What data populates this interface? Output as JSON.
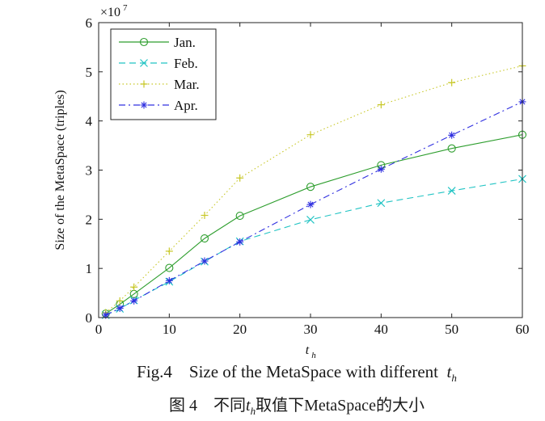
{
  "chart_data": {
    "type": "line",
    "title": "",
    "xlabel": "t_h",
    "xlabel_main": "t",
    "xlabel_sub": "h",
    "ylabel": "Size of the MetaSpace (triples)",
    "y_multiplier": "×10",
    "y_multiplier_exp": "7",
    "xlim": [
      0,
      60
    ],
    "ylim": [
      0,
      6
    ],
    "x_ticks": [
      0,
      10,
      20,
      30,
      40,
      50,
      60
    ],
    "y_ticks": [
      0,
      1,
      2,
      3,
      4,
      5,
      6
    ],
    "grid": false,
    "legend_position": "top-left",
    "x": [
      1,
      3,
      5,
      10,
      15,
      20,
      30,
      40,
      50,
      60
    ],
    "series": [
      {
        "name": "Jan.",
        "color": "#2e9e2e",
        "dash": "solid",
        "marker": "circle",
        "values": [
          0.08,
          0.27,
          0.48,
          1.01,
          1.61,
          2.07,
          2.66,
          3.1,
          3.44,
          3.72
        ]
      },
      {
        "name": "Feb.",
        "color": "#22c4c4",
        "dash": "dashed",
        "marker": "x",
        "values": [
          0.05,
          0.18,
          0.35,
          0.73,
          1.14,
          1.55,
          1.99,
          2.33,
          2.58,
          2.82
        ]
      },
      {
        "name": "Mar.",
        "color": "#c8c828",
        "dash": "dotted",
        "marker": "plus",
        "values": [
          0.1,
          0.34,
          0.62,
          1.35,
          2.08,
          2.84,
          3.72,
          4.33,
          4.78,
          5.12
        ]
      },
      {
        "name": "Apr.",
        "color": "#3030e0",
        "dash": "dashdot",
        "marker": "star",
        "values": [
          0.05,
          0.19,
          0.34,
          0.75,
          1.15,
          1.54,
          2.3,
          3.02,
          3.71,
          4.39
        ]
      }
    ]
  },
  "captions": {
    "en_prefix": "Fig.4    Size of the MetaSpace with different  ",
    "en_var": "t",
    "en_sub": "h",
    "zh_prefix": "图 4    不同",
    "zh_var": "t",
    "zh_sub": "h",
    "zh_suffix": "取值下MetaSpace的大小"
  }
}
